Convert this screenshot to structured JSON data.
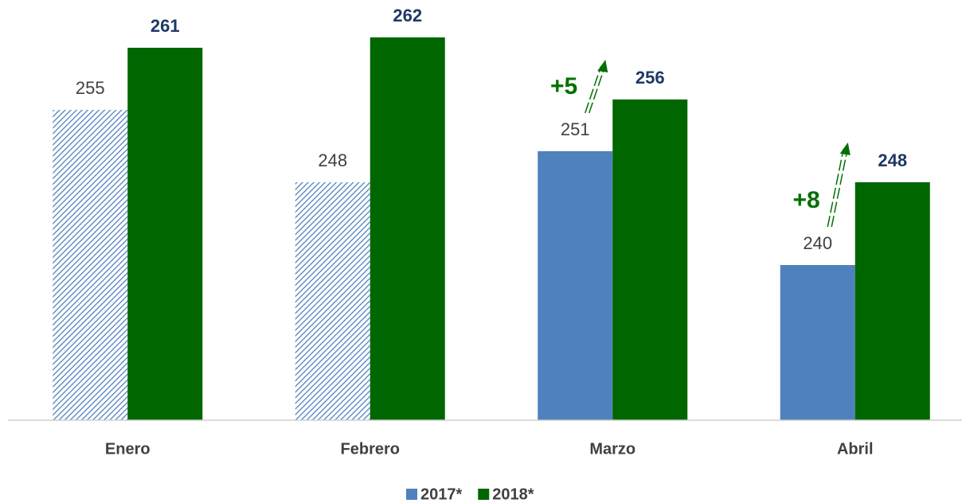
{
  "chart_data": {
    "type": "bar",
    "categories": [
      "Enero",
      "Febrero",
      "Marzo",
      "Abril"
    ],
    "series": [
      {
        "name": "2017*",
        "color": "#4f81bd",
        "values": [
          255,
          248,
          251,
          240
        ],
        "hatched": [
          true,
          true,
          false,
          false
        ]
      },
      {
        "name": "2018*",
        "color": "#006600",
        "values": [
          261,
          262,
          256,
          248
        ]
      }
    ],
    "ylim": [
      225,
      265
    ],
    "annotations": [
      {
        "text": "+5",
        "category": "Marzo"
      },
      {
        "text": "+8",
        "category": "Abril"
      }
    ],
    "legend": "bottom"
  }
}
